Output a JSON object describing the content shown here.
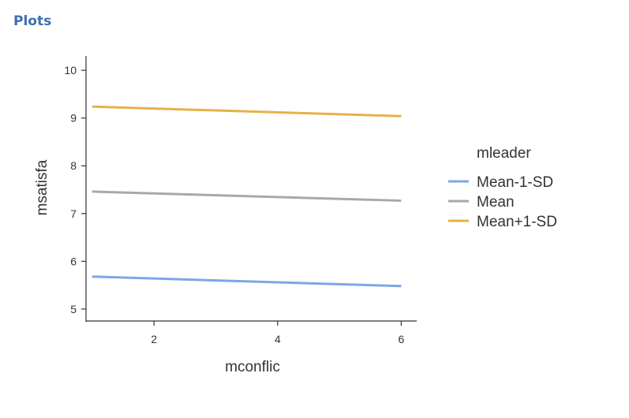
{
  "section": {
    "title": "Plots"
  },
  "chart_data": {
    "type": "line",
    "xlabel": "mconflic",
    "ylabel": "msatisfa",
    "xlim": [
      0.9,
      6.25
    ],
    "ylim": [
      4.75,
      10.3
    ],
    "xticks": [
      2,
      4,
      6
    ],
    "yticks": [
      5,
      6,
      7,
      8,
      9,
      10
    ],
    "grid": false,
    "legend_placement": "right",
    "legend_title": "mleader",
    "series": [
      {
        "name": "Mean-1-SD",
        "color": "#7ba7e6",
        "x": [
          1,
          6
        ],
        "y": [
          5.68,
          5.48
        ]
      },
      {
        "name": "Mean",
        "color": "#a8a8a8",
        "x": [
          1,
          6
        ],
        "y": [
          7.46,
          7.27
        ]
      },
      {
        "name": "Mean+1-SD",
        "color": "#e8b04a",
        "x": [
          1,
          6
        ],
        "y": [
          9.24,
          9.04
        ]
      }
    ]
  }
}
